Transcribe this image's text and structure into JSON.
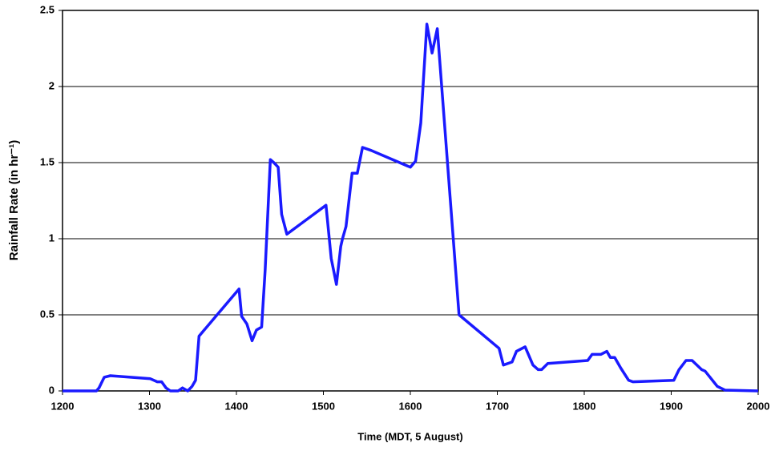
{
  "chart_data": {
    "type": "line",
    "x_label": "Time (MDT, 5 August)",
    "y_label": "Rainfall Rate (in hr⁻¹)",
    "xlim": [
      1200,
      2000
    ],
    "xticks": [
      1200,
      1300,
      1400,
      1500,
      1600,
      1700,
      1800,
      1900,
      2000
    ],
    "ylim": [
      0,
      2.5
    ],
    "yticks": [
      0,
      0.5,
      1,
      1.5,
      2,
      2.5
    ],
    "grid": true,
    "series": [
      {
        "color": "#1a1aff",
        "x": [
          1200,
          1239,
          1242,
          1248,
          1255,
          1301,
          1309,
          1314,
          1319,
          1324,
          1333,
          1338,
          1344,
          1349,
          1353,
          1357,
          1403,
          1406,
          1412,
          1418,
          1423,
          1429,
          1433,
          1439,
          1443,
          1448,
          1452,
          1458,
          1503,
          1509,
          1515,
          1520,
          1522,
          1526,
          1533,
          1539,
          1545,
          1555,
          1600,
          1606,
          1612,
          1619,
          1625,
          1631,
          1656,
          1702,
          1707,
          1717,
          1722,
          1732,
          1741,
          1747,
          1751,
          1758,
          1804,
          1809,
          1819,
          1826,
          1830,
          1835,
          1842,
          1851,
          1856,
          1903,
          1909,
          1917,
          1924,
          1935,
          1939,
          1946,
          1953,
          1962,
          2000
        ],
        "values": [
          0,
          0,
          0.02,
          0.09,
          0.1,
          0.08,
          0.06,
          0.06,
          0.02,
          0,
          0,
          0.02,
          0,
          0.03,
          0.07,
          0.36,
          0.67,
          0.49,
          0.44,
          0.33,
          0.4,
          0.42,
          0.79,
          1.52,
          1.5,
          1.47,
          1.16,
          1.03,
          1.22,
          0.87,
          0.7,
          0.95,
          1.0,
          1.08,
          1.43,
          1.43,
          1.6,
          1.58,
          1.47,
          1.51,
          1.76,
          2.41,
          2.22,
          2.38,
          0.5,
          0.28,
          0.17,
          0.19,
          0.26,
          0.29,
          0.17,
          0.14,
          0.14,
          0.18,
          0.2,
          0.24,
          0.24,
          0.26,
          0.22,
          0.22,
          0.15,
          0.07,
          0.06,
          0.07,
          0.14,
          0.2,
          0.2,
          0.14,
          0.13,
          0.08,
          0.03,
          0.005,
          0
        ]
      }
    ]
  }
}
